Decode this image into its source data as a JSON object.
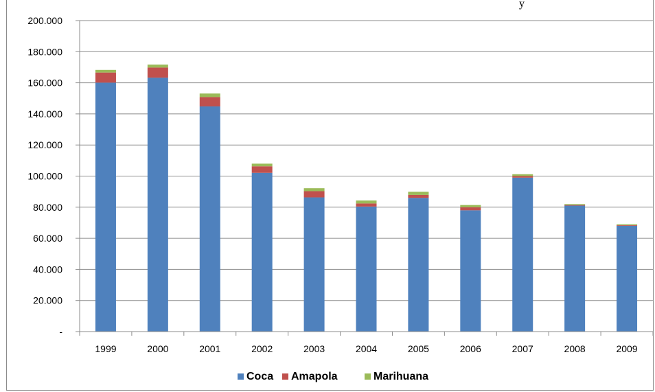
{
  "chart_data": {
    "type": "bar",
    "stacked": true,
    "categories": [
      "1999",
      "2000",
      "2001",
      "2002",
      "2003",
      "2004",
      "2005",
      "2006",
      "2007",
      "2008",
      "2009"
    ],
    "series": [
      {
        "name": "Coca",
        "color": "#4f81bd",
        "values": [
          160100,
          163300,
          144800,
          102100,
          86300,
          80400,
          86000,
          78000,
          99000,
          81000,
          68000
        ]
      },
      {
        "name": "Amapola",
        "color": "#c0504d",
        "values": [
          6500,
          6500,
          6000,
          4200,
          4000,
          2000,
          1900,
          1900,
          1000,
          400,
          400
        ]
      },
      {
        "name": "Marihuana",
        "color": "#9bbb59",
        "values": [
          1700,
          1900,
          2300,
          1700,
          1900,
          1900,
          2000,
          1500,
          1200,
          600,
          600
        ]
      }
    ],
    "ylim": [
      0,
      200000
    ],
    "yticks": [
      0,
      20000,
      40000,
      60000,
      80000,
      100000,
      120000,
      140000,
      160000,
      180000,
      200000
    ],
    "ytick_labels": [
      "-",
      "20.000",
      "40.000",
      "60.000",
      "80.000",
      "100.000",
      "120.000",
      "140.000",
      "160.000",
      "180.000",
      "200.000"
    ],
    "title": "",
    "xlabel": "",
    "ylabel": "",
    "grid": true,
    "legend_position": "bottom"
  },
  "header_fragment": "y"
}
